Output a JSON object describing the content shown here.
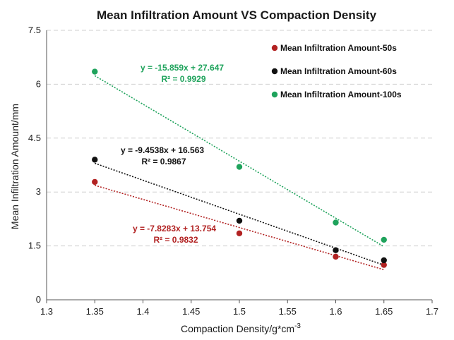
{
  "chart_data": {
    "type": "scatter",
    "title": "Mean Infiltration Amount VS Compaction Density",
    "xlabel": "Compaction Density/g*cm",
    "xlabel_sup": "-3",
    "ylabel": "Mean Infiltration Amount/mm",
    "xlim": [
      1.3,
      1.7
    ],
    "ylim": [
      0,
      7.5
    ],
    "xticks": [
      "1.3",
      "1.35",
      "1.4",
      "1.45",
      "1.5",
      "1.55",
      "1.6",
      "1.65",
      "1.7"
    ],
    "yticks": [
      "0",
      "1.5",
      "3",
      "4.5",
      "6",
      "7.5"
    ],
    "grid": "horizontal dashed",
    "legend_position": "top-right",
    "x": [
      1.35,
      1.5,
      1.6,
      1.65
    ],
    "series": [
      {
        "name": "Mean Infiltration Amount-50s",
        "color": "#b22222",
        "values": [
          3.28,
          1.85,
          1.2,
          0.97
        ],
        "trend": {
          "slope": -7.8283,
          "intercept": 13.754
        },
        "equation": "y = -7.8283x + 13.754",
        "r2": "R² = 0.9832"
      },
      {
        "name": "Mean Infiltration Amount-60s",
        "color": "#111111",
        "values": [
          3.9,
          2.2,
          1.38,
          1.1
        ],
        "trend": {
          "slope": -9.4538,
          "intercept": 16.563
        },
        "equation": "y = -9.4538x + 16.563",
        "r2": "R² = 0.9867"
      },
      {
        "name": "Mean Infiltration Amount-100s",
        "color": "#1fa35c",
        "values": [
          6.35,
          3.7,
          2.15,
          1.67
        ],
        "trend": {
          "slope": -15.859,
          "intercept": 27.647
        },
        "equation": "y = -15.859x + 27.647",
        "r2": "R² = 0.9929"
      }
    ]
  }
}
